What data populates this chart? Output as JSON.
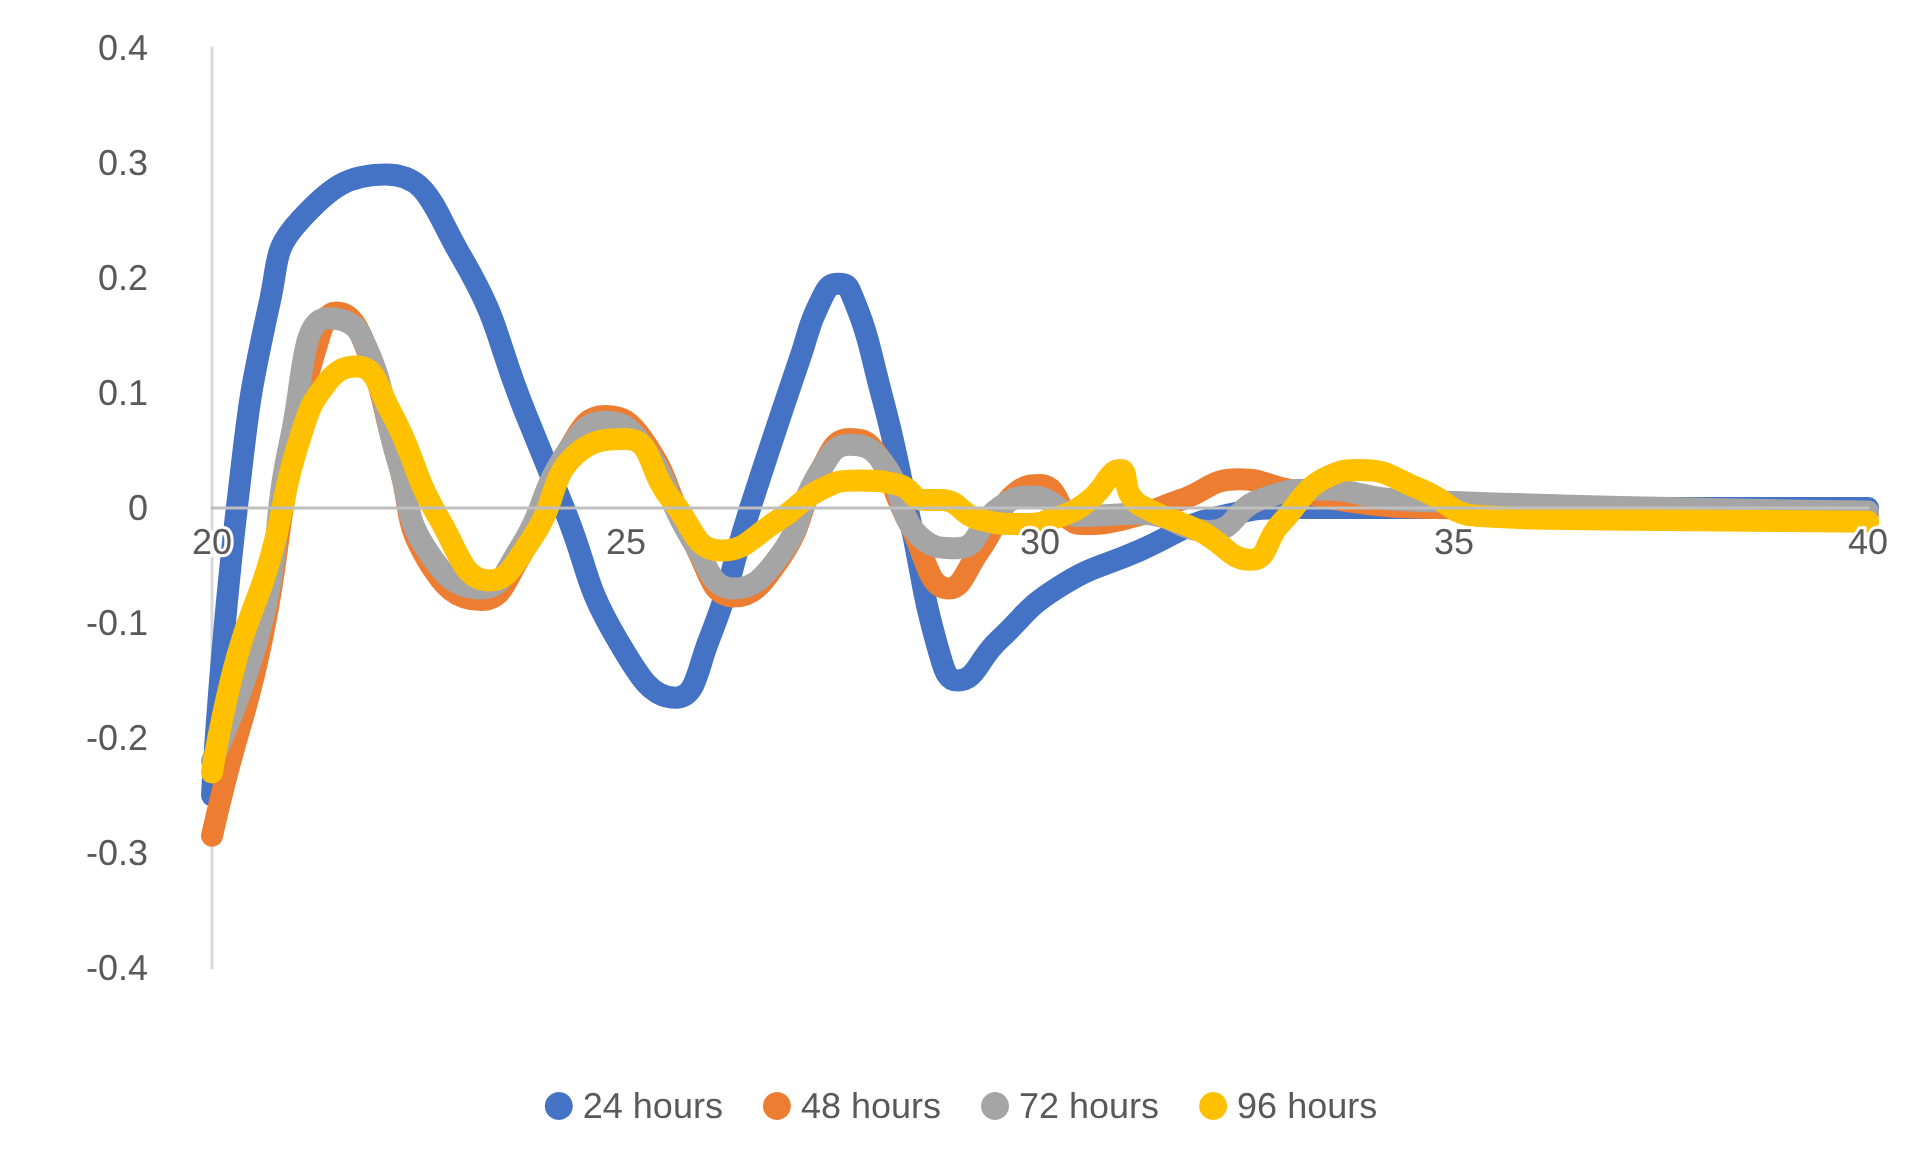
{
  "chart_data": {
    "type": "line",
    "xlim": [
      20,
      40
    ],
    "xticks": [
      20,
      25,
      30,
      35,
      40
    ],
    "ylim": [
      -0.4,
      0.4
    ],
    "yticks": [
      -0.4,
      -0.3,
      -0.2,
      -0.1,
      0,
      0.1,
      0.2,
      0.3,
      0.4
    ],
    "grid": false,
    "legend": "bottom",
    "marker": "none",
    "line_style": "solid",
    "series": [
      {
        "name": "24 hours",
        "color": "#4472c4",
        "x": [
          20,
          20.3,
          20.7,
          21.06,
          22.1,
          23,
          23.8,
          24.25,
          24.9,
          25.6,
          26,
          26.5,
          27.1,
          27.35,
          27.55,
          27.7,
          28.1,
          28.4,
          28.8,
          29,
          29.5,
          30.2,
          31.2,
          32.2,
          33.1,
          35,
          40
        ],
        "values": [
          -0.25,
          0,
          0.18,
          0.25,
          0.29,
          0.22,
          0.08,
          0,
          -0.115,
          -0.165,
          -0.115,
          0,
          0.13,
          0.18,
          0.195,
          0.19,
          0.095,
          0,
          -0.13,
          -0.15,
          -0.115,
          -0.07,
          -0.037,
          -0.007,
          0,
          0,
          0
        ]
      },
      {
        "name": "48 hours",
        "color": "#ed7d31",
        "x": [
          20,
          20.15,
          20.6,
          20.95,
          21.3,
          21.5,
          21.8,
          22.25,
          22.6,
          23.25,
          23.7,
          24.3,
          24.75,
          25.2,
          25.8,
          26.3,
          26.85,
          27.35,
          27.7,
          28,
          28.4,
          28.9,
          29.27,
          29.76,
          30,
          30.5,
          31,
          31.7,
          32.4,
          33,
          33.9,
          34.8,
          40
        ],
        "values": [
          -0.285,
          -0.24,
          -0.115,
          0.04,
          0.15,
          0.17,
          0.15,
          0.04,
          -0.045,
          -0.08,
          -0.045,
          0.05,
          0.08,
          0.06,
          -0.028,
          -0.077,
          -0.045,
          0.033,
          0.06,
          0.05,
          -0.01,
          -0.07,
          -0.037,
          0.016,
          0.02,
          -0.014,
          -0.01,
          0.007,
          0.025,
          0.016,
          0.004,
          0,
          -0.005
        ]
      },
      {
        "name": "72 hours",
        "color": "#a5a5a5",
        "x": [
          20,
          20.6,
          20.95,
          21.4,
          21.8,
          22.25,
          22.6,
          23.25,
          23.7,
          24.3,
          24.75,
          25.2,
          25.8,
          26.3,
          26.85,
          27.35,
          27.7,
          28.1,
          28.55,
          29,
          29.5,
          29.9,
          30.5,
          31.2,
          32.05,
          32.65,
          33.4,
          34.35,
          40
        ],
        "values": [
          -0.22,
          -0.1,
          0.06,
          0.165,
          0.15,
          0.04,
          -0.037,
          -0.07,
          -0.037,
          0.05,
          0.075,
          0.055,
          -0.028,
          -0.07,
          -0.042,
          0.033,
          0.055,
          0.04,
          -0.025,
          -0.035,
          0,
          0.01,
          -0.007,
          -0.005,
          -0.02,
          0.007,
          0.016,
          0.007,
          -0.003
        ]
      },
      {
        "name": "96 hours",
        "color": "#ffc000",
        "x": [
          20,
          20.3,
          20.7,
          21.06,
          21.4,
          21.75,
          22.15,
          22.75,
          23.35,
          23.85,
          24.45,
          25,
          25.55,
          26.15,
          26.85,
          27.35,
          27.8,
          28.3,
          28.6,
          28.8,
          29.27,
          29.76,
          30.25,
          30.6,
          30.97,
          31.1,
          31.33,
          31.93,
          32.55,
          32.9,
          33.5,
          33.87,
          34.6,
          35.3,
          36.8,
          40
        ],
        "values": [
          -0.23,
          -0.13,
          -0.045,
          0.06,
          0.11,
          0.123,
          0.085,
          -0.01,
          -0.063,
          -0.028,
          0.05,
          0.06,
          0.007,
          -0.037,
          -0.01,
          0.016,
          0.024,
          0.02,
          0.007,
          0.007,
          -0.01,
          -0.014,
          -0.007,
          0.007,
          0.033,
          0.01,
          -0.002,
          -0.02,
          -0.045,
          -0.014,
          0.028,
          0.033,
          0.016,
          -0.007,
          -0.01,
          -0.012
        ]
      }
    ]
  }
}
